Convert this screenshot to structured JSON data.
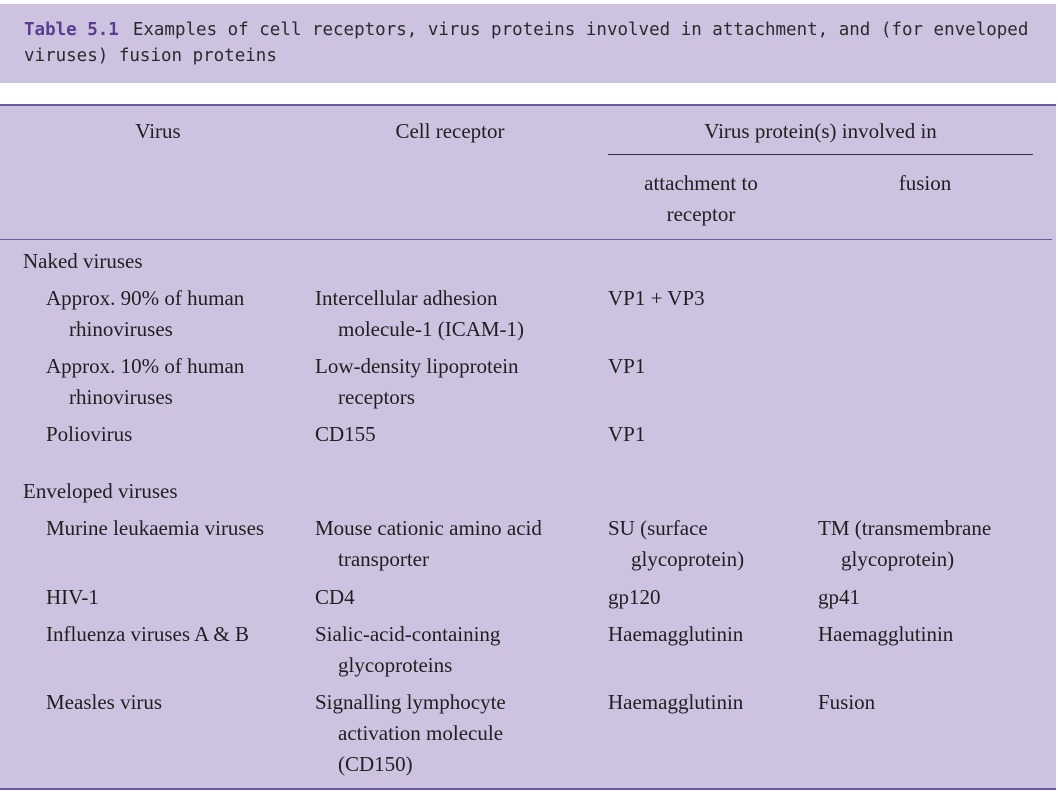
{
  "caption": {
    "label": "Table 5.1",
    "text": "Examples of cell receptors, virus proteins involved in attachment, and (for enveloped viruses) fusion proteins"
  },
  "header": {
    "virus": "Virus",
    "cell_receptor": "Cell receptor",
    "protein_group": "Virus protein(s) involved in",
    "attachment": "attachment to receptor",
    "fusion": "fusion"
  },
  "sections": [
    {
      "title": "Naked viruses",
      "rows": [
        {
          "virus": "Approx. 90% of human rhinoviruses",
          "receptor": "Intercellular adhesion molecule-1 (ICAM-1)",
          "attachment": "VP1 + VP3",
          "fusion": ""
        },
        {
          "virus": "Approx. 10% of human rhinoviruses",
          "receptor": "Low-density lipoprotein receptors",
          "attachment": "VP1",
          "fusion": ""
        },
        {
          "virus": "Poliovirus",
          "receptor": "CD155",
          "attachment": "VP1",
          "fusion": ""
        }
      ]
    },
    {
      "title": "Enveloped viruses",
      "rows": [
        {
          "virus": "Murine leukaemia viruses",
          "receptor": "Mouse cationic amino acid transporter",
          "attachment": "SU (surface glycoprotein)",
          "fusion": "TM (transmembrane glycoprotein)"
        },
        {
          "virus": "HIV-1",
          "receptor": "CD4",
          "attachment": "gp120",
          "fusion": "gp41"
        },
        {
          "virus": "Influenza viruses A & B",
          "receptor": "Sialic-acid-containing glycoproteins",
          "attachment": "Haemagglutinin",
          "fusion": "Haemagglutinin"
        },
        {
          "virus": "Measles virus",
          "receptor": "Signalling lymphocyte activation molecule (CD150)",
          "attachment": "Haemagglutinin",
          "fusion": "Fusion"
        }
      ]
    }
  ]
}
